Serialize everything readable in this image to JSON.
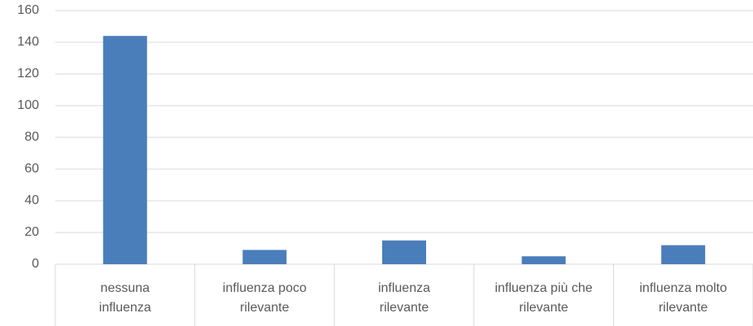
{
  "chart_data": {
    "type": "bar",
    "categories": [
      "nessuna\ninfluenza",
      "influenza poco\nrilevante",
      "influenza\nrilevante",
      "influenza più che\nrilevante",
      "influenza molto\nrilevante"
    ],
    "values": [
      144,
      9,
      15,
      5,
      12
    ],
    "color": "#4a7ebb",
    "ylim": [
      0,
      160
    ],
    "yticks": [
      0,
      20,
      40,
      60,
      80,
      100,
      120,
      140,
      160
    ],
    "grid": true
  }
}
